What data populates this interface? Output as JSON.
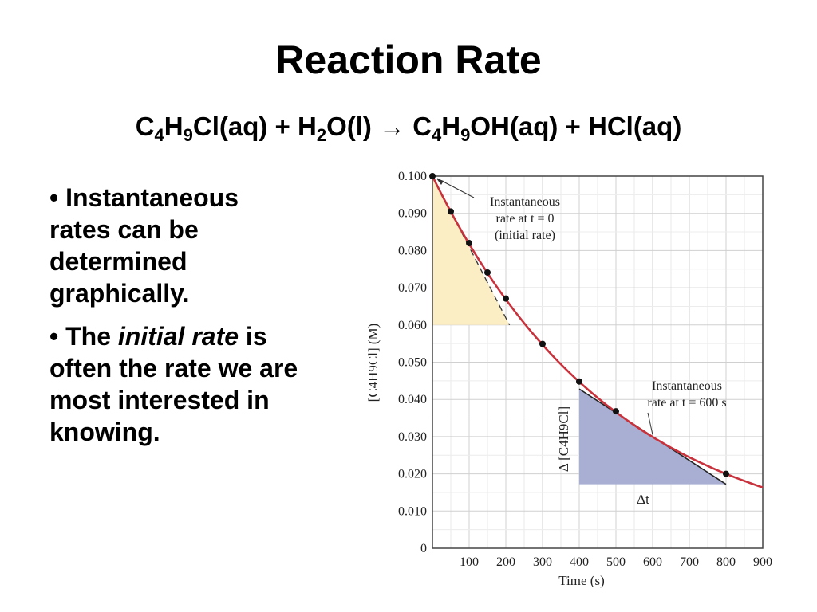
{
  "slide": {
    "title": "Reaction Rate",
    "equation": {
      "reactant1": [
        "C",
        "4",
        "H",
        "9",
        "Cl(aq) + H",
        "2",
        "O(l) "
      ],
      "arrow": "→",
      "product": [
        " C",
        "4",
        "H",
        "9",
        "OH(aq) + HCl(aq)"
      ]
    },
    "bullets": [
      {
        "marker": "•",
        "before": " Instantaneous rates can be determined graphically.",
        "emphasis": "",
        "after": ""
      },
      {
        "marker": "•",
        "before": " The ",
        "emphasis": "initial rate",
        "after": " is often the rate we are most interested in knowing."
      }
    ]
  },
  "chart_data": {
    "type": "line",
    "xlabel": "Time (s)",
    "ylabel": "[C4H9Cl] (M)",
    "xlim": [
      0,
      900
    ],
    "ylim": [
      0,
      0.1
    ],
    "x_ticks": [
      "100",
      "200",
      "300",
      "400",
      "500",
      "600",
      "700",
      "800",
      "900"
    ],
    "y_ticks": [
      "0",
      "0.010",
      "0.020",
      "0.030",
      "0.040",
      "0.050",
      "0.060",
      "0.070",
      "0.080",
      "0.090",
      "0.100"
    ],
    "grid": true,
    "series": [
      {
        "name": "",
        "color": "#c8323c",
        "points": [
          {
            "x": 0,
            "y": 0.1
          },
          {
            "x": 50,
            "y": 0.0905
          },
          {
            "x": 100,
            "y": 0.082
          },
          {
            "x": 150,
            "y": 0.0741
          },
          {
            "x": 200,
            "y": 0.0671
          },
          {
            "x": 300,
            "y": 0.0549
          },
          {
            "x": 400,
            "y": 0.0448
          },
          {
            "x": 500,
            "y": 0.0368
          },
          {
            "x": 800,
            "y": 0.02
          }
        ]
      }
    ],
    "tangents": [
      {
        "from": {
          "x": 0,
          "y": 0.1
        },
        "to": {
          "x": 210,
          "y": 0.06
        },
        "style": "dashed",
        "fill_color": "#fbeec4"
      },
      {
        "from": {
          "x": 400,
          "y": 0.0428
        },
        "to": {
          "x": 800,
          "y": 0.0172
        },
        "style": "solid",
        "fill_color": "#a9afd2"
      }
    ],
    "annotations": [
      {
        "id": "initial",
        "lines": [
          "Instantaneous",
          "rate at t = 0",
          "(initial rate)"
        ]
      },
      {
        "id": "t600",
        "lines": [
          "Instantaneous",
          "rate at t = 600 s"
        ]
      },
      {
        "id": "delta_c",
        "text": "Δ [C4H9Cl]"
      },
      {
        "id": "delta_t",
        "text": "Δt"
      }
    ]
  },
  "colors": {
    "curve": "#c8323c",
    "initial_region": "#fbeec4",
    "t600_region": "#a9afd2",
    "grid": "#d0d0d0",
    "axis": "#444444",
    "point": "#111111"
  }
}
